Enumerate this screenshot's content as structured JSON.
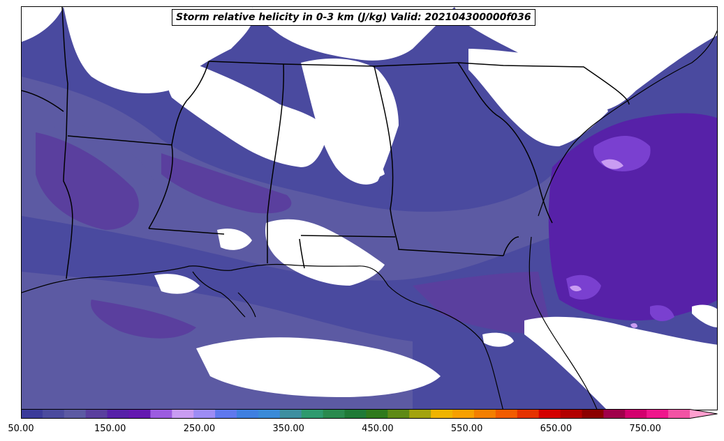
{
  "title": "Storm relative helicity in 0-3 km (J/kg) Valid: 202104300000f036",
  "colorbar": {
    "min": 50,
    "max": 800,
    "extend": "max",
    "ticks": [
      {
        "value": 50,
        "label": "50.00"
      },
      {
        "value": 150,
        "label": "150.00"
      },
      {
        "value": 250,
        "label": "250.00"
      },
      {
        "value": 350,
        "label": "350.00"
      },
      {
        "value": 450,
        "label": "450.00"
      },
      {
        "value": 550,
        "label": "550.00"
      },
      {
        "value": 650,
        "label": "650.00"
      },
      {
        "value": 750,
        "label": "750.00"
      }
    ],
    "colors": [
      "#3b3b9a",
      "#4b4b9e",
      "#5c5aa3",
      "#5a3f9e",
      "#5721a8",
      "#6418b0",
      "#9c5ce0",
      "#c99cf2",
      "#9d8cf5",
      "#5f78ee",
      "#3f7fe0",
      "#3a8ad8",
      "#3d8fa0",
      "#2e9a6e",
      "#2a8a4e",
      "#1f7a36",
      "#2f7a1c",
      "#5e8a16",
      "#a3a30e",
      "#f0b400",
      "#f7a000",
      "#f47f00",
      "#f25c00",
      "#e53200",
      "#d40000",
      "#b30000",
      "#8c0000",
      "#a0004a",
      "#d3006e",
      "#ef168c",
      "#f352a4",
      "#ff9fcf"
    ]
  },
  "shading_colors": {
    "light": "#4b4b9e",
    "mid": "#5c5aa3",
    "dark": "#3b3b9a",
    "purple": "#5a3f9e",
    "strong": "#5721a8",
    "max": "#9c5ce0",
    "peak": "#c99cf2"
  }
}
